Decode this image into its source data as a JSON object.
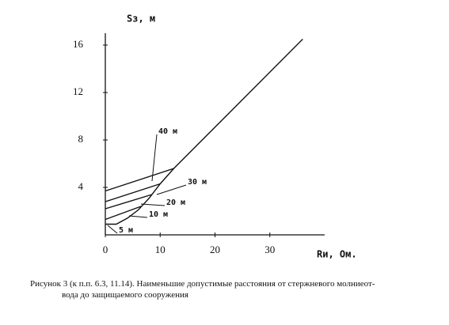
{
  "chart_data": {
    "type": "line",
    "y_label": "Sз, м",
    "x_label": "Rи, Ом.",
    "xlim": [
      0,
      40
    ],
    "ylim": [
      0,
      17
    ],
    "xticks": [
      0,
      10,
      20,
      30
    ],
    "yticks": [
      4,
      8,
      12,
      16
    ],
    "color": "#111111",
    "series": [
      {
        "name": "40 м",
        "x": [
          0,
          12.5,
          36
        ],
        "values": [
          3.7,
          5.6,
          16.5
        ]
      },
      {
        "name": "30 м",
        "x": [
          0,
          10
        ],
        "values": [
          2.8,
          4.3
        ]
      },
      {
        "name": "20 м",
        "x": [
          0,
          8.5
        ],
        "values": [
          2.2,
          3.4
        ]
      },
      {
        "name": "10 м",
        "x": [
          0,
          6.5
        ],
        "values": [
          1.3,
          2.4
        ]
      },
      {
        "name": "5 м",
        "x": [
          0,
          2,
          4,
          6,
          8,
          10,
          12.5
        ],
        "values": [
          0.9,
          0.9,
          1.4,
          2.1,
          3.1,
          4.3,
          5.6
        ]
      }
    ],
    "caption": [
      "Рисунок 3 (к п.п. 6.3, 11.14). Наименьшие допустимые расстояния от стержневого молниеот-",
      "вода до защищаемого сооружения"
    ]
  }
}
